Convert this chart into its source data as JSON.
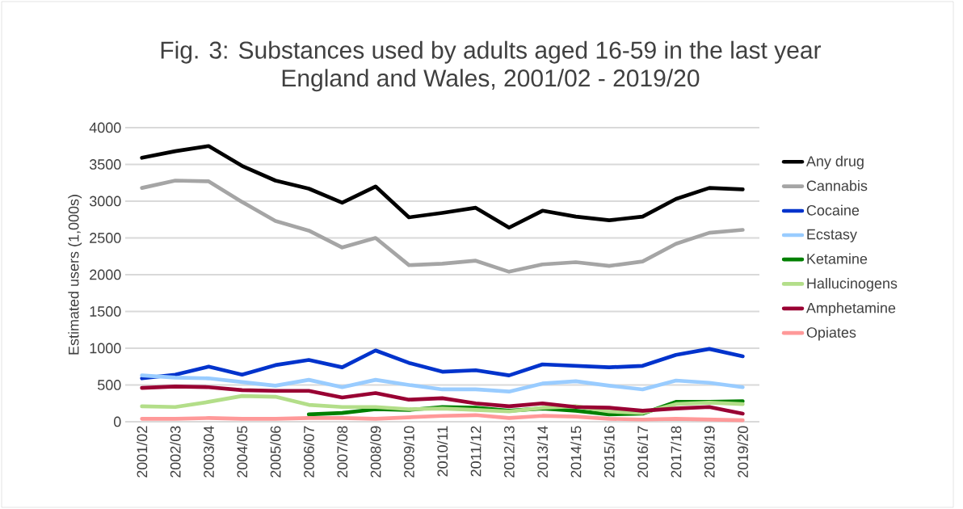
{
  "chart_data": {
    "type": "line",
    "title": "Fig. 3: Substances used by adults aged 16-59 in the last year",
    "subtitle": "England and Wales, 2001/02 - 2019/20",
    "ylabel": "Estimated users (1,000s)",
    "categories": [
      "2001/02",
      "2002/03",
      "2003/04",
      "2004/05",
      "2005/06",
      "2006/07",
      "2007/08",
      "2008/09",
      "2009/10",
      "2010/11",
      "2011/12",
      "2012/13",
      "2013/14",
      "2014/15",
      "2015/16",
      "2016/17",
      "2017/18",
      "2018/19",
      "2019/20"
    ],
    "ylim": [
      0,
      4000
    ],
    "yticks": [
      0,
      500,
      1000,
      1500,
      2000,
      2500,
      3000,
      3500,
      4000
    ],
    "grid": "y",
    "legend": "right",
    "marker": "none",
    "line_style": "solid",
    "series": [
      {
        "name": "Any drug",
        "color": "#000000",
        "values": [
          3590,
          3680,
          3750,
          3480,
          3280,
          3170,
          2980,
          3200,
          2780,
          2840,
          2910,
          2640,
          2870,
          2790,
          2740,
          2790,
          3030,
          3180,
          3160
        ]
      },
      {
        "name": "Cannabis",
        "color": "#a5a5a5",
        "values": [
          3180,
          3280,
          3270,
          2990,
          2730,
          2600,
          2370,
          2500,
          2130,
          2150,
          2190,
          2040,
          2140,
          2170,
          2120,
          2180,
          2420,
          2570,
          2610
        ]
      },
      {
        "name": "Cocaine",
        "color": "#0033cc",
        "values": [
          590,
          640,
          750,
          640,
          770,
          840,
          740,
          970,
          800,
          680,
          700,
          630,
          780,
          760,
          740,
          760,
          910,
          990,
          890
        ]
      },
      {
        "name": "Ecstasy",
        "color": "#99ccff",
        "values": [
          630,
          600,
          590,
          540,
          490,
          570,
          470,
          570,
          500,
          440,
          440,
          410,
          520,
          550,
          490,
          440,
          560,
          530,
          470
        ]
      },
      {
        "name": "Ketamine",
        "color": "#008000",
        "values": [
          null,
          null,
          null,
          null,
          null,
          100,
          120,
          170,
          160,
          200,
          190,
          150,
          180,
          150,
          100,
          110,
          270,
          270,
          280
        ]
      },
      {
        "name": "Hallucinogens",
        "color": "#b3de89",
        "values": [
          210,
          200,
          270,
          350,
          340,
          230,
          200,
          200,
          170,
          180,
          160,
          140,
          190,
          210,
          140,
          120,
          240,
          260,
          240
        ]
      },
      {
        "name": "Amphetamine",
        "color": "#990033",
        "values": [
          460,
          480,
          470,
          430,
          420,
          420,
          330,
          390,
          300,
          320,
          250,
          210,
          250,
          200,
          190,
          150,
          180,
          200,
          110
        ]
      },
      {
        "name": "Opiates",
        "color": "#ff9999",
        "values": [
          40,
          40,
          50,
          40,
          40,
          50,
          50,
          40,
          60,
          80,
          90,
          50,
          80,
          70,
          40,
          30,
          40,
          30,
          20
        ]
      }
    ]
  }
}
